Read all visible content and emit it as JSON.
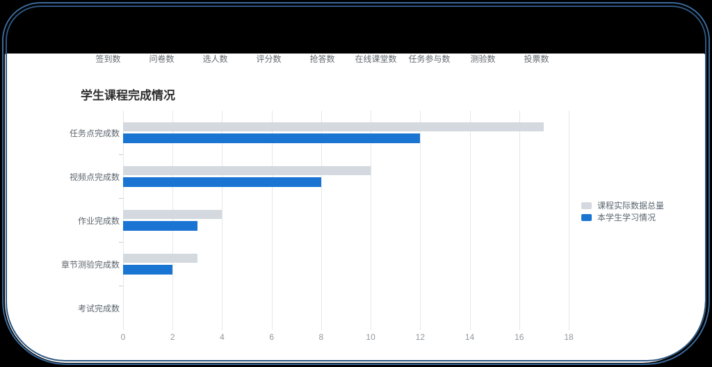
{
  "frame": {
    "background_color": "#000000",
    "border_color": "#3a6a9b",
    "panel_color": "#ffffff"
  },
  "navbar": {
    "items": [
      {
        "label": "签到数"
      },
      {
        "label": "问卷数"
      },
      {
        "label": "选人数"
      },
      {
        "label": "评分数"
      },
      {
        "label": "抢答数"
      },
      {
        "label": "在线课堂数"
      },
      {
        "label": "任务参与数"
      },
      {
        "label": "测验数"
      },
      {
        "label": "投票数"
      }
    ]
  },
  "chart_data": {
    "type": "bar",
    "orientation": "horizontal",
    "title": "学生课程完成情况",
    "categories": [
      "任务点完成数",
      "视频点完成数",
      "作业完成数",
      "章节测验完成数",
      "考试完成数"
    ],
    "series": [
      {
        "name": "课程实际数据总量",
        "color": "#d3d9de",
        "values": [
          17,
          10,
          4,
          3,
          0
        ]
      },
      {
        "name": "本学生学习情况",
        "color": "#1a74d2",
        "values": [
          12,
          8,
          3,
          2,
          0
        ]
      }
    ],
    "xlim": [
      0,
      18
    ],
    "x_ticks": [
      0,
      2,
      4,
      6,
      8,
      10,
      12,
      14,
      16,
      18
    ],
    "grid": true,
    "legend_position": "right",
    "grid_color": "#e4e6e8"
  }
}
